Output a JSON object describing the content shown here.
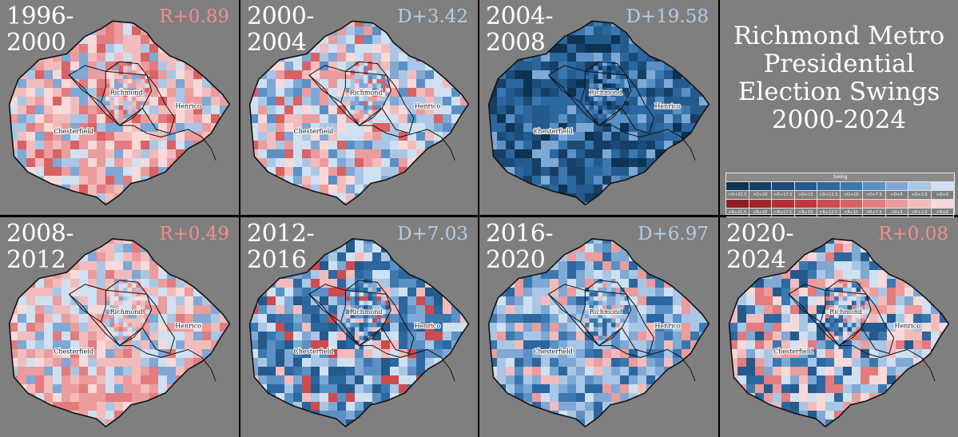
{
  "title": "Richmond Metro Presidential Election Swings 2000-2024",
  "title_lines": [
    "Richmond Metro",
    "Presidential",
    "Election Swings",
    "2000-2024"
  ],
  "labels": {
    "richmond": "Richmond",
    "henrico": "Henrico",
    "chesterfield": "Chesterfield"
  },
  "colors": {
    "bg": "#7f7f7f",
    "dem_text": "#b4cde6",
    "rep_text": "#f0908f",
    "D+22.5": "#0d3353",
    "D+20": "#153f66",
    "D+17.5": "#1c4b78",
    "D+15": "#245a8c",
    "D+12.5": "#2c67a0",
    "D+10": "#3a78b0",
    "D+7.5": "#5b90c4",
    "D+5": "#7fa8d4",
    "D+2.5": "#a9c7e4",
    "D+0": "#cfe0f1",
    "R+22.5": "#8c1e23",
    "R+20": "#a0262c",
    "R+17.5": "#b03036",
    "R+15": "#c0393e",
    "R+12.5": "#cc4b4f",
    "R+10": "#d86264",
    "R+7.5": "#e27c7e",
    "R+5": "#eb9c9d",
    "R+2.5": "#f3bcbc",
    "R+0": "#f8d9d9"
  },
  "legend": {
    "title": "Swing",
    "dem": [
      ">D+22.5",
      ">D+20",
      ">D+17.5",
      ">D+15",
      ">D+12.5",
      ">D+10",
      ">D+7.5",
      ">D+5",
      ">D+2.5",
      ">D+0"
    ],
    "rep": [
      ">R+22.5",
      ">R+20",
      ">R+17.5",
      ">R+15",
      ">R+12.5",
      ">R+10",
      ">R+7.5",
      ">R+5",
      ">R+2.5",
      ">R+0"
    ]
  },
  "panels": [
    {
      "period_a": "1996-",
      "period_b": "2000",
      "swing": "R+0.89",
      "party": "R",
      "mix": [
        "R+0",
        "R+2.5",
        "R+5",
        "R+7.5",
        "R+10",
        "D+0",
        "D+2.5",
        "D+5",
        "R+2.5",
        "R+5"
      ]
    },
    {
      "period_a": "2000-",
      "period_b": "2004",
      "swing": "D+3.42",
      "party": "D",
      "mix": [
        "D+0",
        "D+2.5",
        "D+5",
        "R+0",
        "R+2.5",
        "R+5",
        "D+0",
        "D+2.5",
        "R+10",
        "D+7.5"
      ]
    },
    {
      "period_a": "2004-",
      "period_b": "2008",
      "swing": "D+19.58",
      "party": "D",
      "mix": [
        "D+10",
        "D+12.5",
        "D+15",
        "D+17.5",
        "D+20",
        "D+7.5",
        "D+5",
        "D+12.5",
        "D+15",
        "D+22.5"
      ]
    },
    {
      "period_a": "2008-",
      "period_b": "2012",
      "swing": "R+0.49",
      "party": "R",
      "mix": [
        "R+0",
        "R+2.5",
        "R+5",
        "D+0",
        "D+2.5",
        "R+2.5",
        "R+5",
        "D+0",
        "D+5",
        "R+7.5"
      ]
    },
    {
      "period_a": "2012-",
      "period_b": "2016",
      "swing": "D+7.03",
      "party": "D",
      "mix": [
        "D+5",
        "D+7.5",
        "D+10",
        "D+2.5",
        "D+12.5",
        "D+15",
        "R+2.5",
        "D+0",
        "D+7.5",
        "R+12.5"
      ]
    },
    {
      "period_a": "2016-",
      "period_b": "2020",
      "swing": "D+6.97",
      "party": "D",
      "mix": [
        "D+5",
        "D+7.5",
        "D+2.5",
        "D+0",
        "D+10",
        "R+2.5",
        "R+5",
        "D+5",
        "D+12.5",
        "D+2.5"
      ]
    },
    {
      "period_a": "2020-",
      "period_b": "2024",
      "swing": "R+0.08",
      "party": "R",
      "mix": [
        "D+10",
        "D+12.5",
        "R+2.5",
        "R+5",
        "D+5",
        "D+0",
        "R+0",
        "D+15",
        "R+7.5",
        "D+2.5"
      ]
    }
  ]
}
